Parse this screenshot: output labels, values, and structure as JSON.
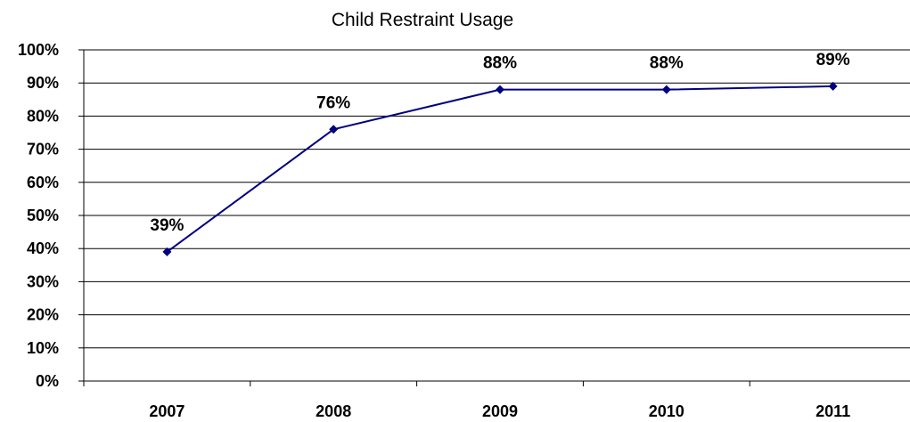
{
  "chart_data": {
    "type": "line",
    "title": "Child Restraint Usage",
    "xlabel": "",
    "ylabel": "",
    "categories": [
      "2007",
      "2008",
      "2009",
      "2010",
      "2011"
    ],
    "series": [
      {
        "values": [
          39,
          76,
          88,
          88,
          89
        ]
      }
    ],
    "data_labels": [
      "39%",
      "76%",
      "88%",
      "88%",
      "89%"
    ],
    "ylim": [
      0,
      100
    ],
    "y_ticks": [
      "0%",
      "10%",
      "20%",
      "30%",
      "40%",
      "50%",
      "60%",
      "70%",
      "80%",
      "90%",
      "100%"
    ],
    "grid": true,
    "legend": "none",
    "colors": {
      "line": "#000080",
      "grid": "#000000",
      "text": "#000000"
    }
  }
}
